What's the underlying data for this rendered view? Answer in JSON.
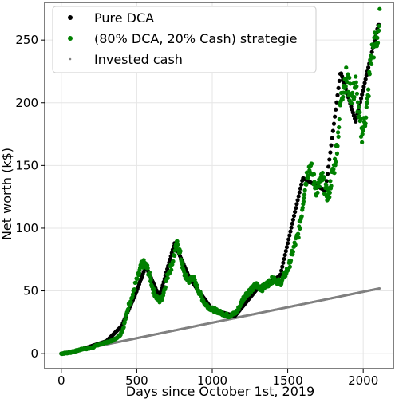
{
  "chart_data": {
    "type": "scatter",
    "title": "",
    "xlabel": "Days since October 1st, 2019",
    "ylabel": "Net worth (k$)",
    "xlim": [
      -110,
      2200
    ],
    "ylim": [
      -12,
      280
    ],
    "xticks": [
      0,
      500,
      1000,
      1500,
      2000
    ],
    "yticks": [
      0,
      50,
      100,
      150,
      200,
      250
    ],
    "grid": true,
    "legend": {
      "placement": "top-left",
      "entries": [
        "Pure DCA",
        "(80% DCA, 20% Cash) strategie",
        "Invested cash"
      ]
    },
    "series": [
      {
        "name": "Pure DCA",
        "color": "#000000",
        "x": [
          0,
          100,
          200,
          300,
          400,
          500,
          560,
          650,
          750,
          850,
          1000,
          1150,
          1300,
          1450,
          1600,
          1750,
          1850,
          1950,
          2100
        ],
        "y": [
          0,
          2,
          6,
          10,
          22,
          50,
          70,
          45,
          88,
          60,
          35,
          30,
          52,
          62,
          140,
          130,
          225,
          185,
          262
        ]
      },
      {
        "name": "(80% DCA, 20% Cash) strategie",
        "color": "#008000",
        "x": [
          0,
          30,
          60,
          90,
          120,
          150,
          180,
          210,
          240,
          270,
          300,
          330,
          360,
          390,
          410,
          430,
          450,
          470,
          490,
          510,
          530,
          550,
          570,
          590,
          610,
          630,
          650,
          670,
          690,
          710,
          730,
          750,
          770,
          790,
          810,
          830,
          850,
          870,
          890,
          910,
          930,
          950,
          970,
          990,
          1010,
          1030,
          1050,
          1070,
          1090,
          1110,
          1130,
          1150,
          1170,
          1190,
          1210,
          1230,
          1250,
          1270,
          1290,
          1310,
          1330,
          1350,
          1370,
          1390,
          1410,
          1430,
          1450,
          1470,
          1490,
          1510,
          1530,
          1550,
          1570,
          1590,
          1610,
          1630,
          1650,
          1670,
          1690,
          1710,
          1730,
          1750,
          1770,
          1790,
          1810,
          1830,
          1850,
          1870,
          1890,
          1910,
          1930,
          1950,
          1970,
          1990,
          2010,
          2030,
          2050,
          2070,
          2090,
          2110
        ],
        "y": [
          0,
          0.5,
          1,
          2,
          3,
          4,
          4,
          5,
          7,
          8,
          9,
          10,
          12,
          15,
          20,
          30,
          40,
          45,
          55,
          62,
          70,
          72,
          68,
          60,
          50,
          45,
          42,
          45,
          55,
          65,
          70,
          80,
          88,
          78,
          65,
          60,
          58,
          62,
          55,
          50,
          45,
          40,
          38,
          36,
          35,
          34,
          33,
          32,
          31,
          30,
          31,
          32,
          35,
          40,
          45,
          48,
          50,
          52,
          55,
          53,
          52,
          54,
          56,
          58,
          60,
          58,
          56,
          60,
          65,
          70,
          80,
          88,
          95,
          110,
          130,
          145,
          150,
          140,
          130,
          135,
          140,
          130,
          125,
          140,
          150,
          170,
          200,
          215,
          220,
          210,
          205,
          215,
          190,
          175,
          185,
          200,
          235,
          245,
          250,
          265
        ]
      },
      {
        "name": "Invested cash",
        "color": "#808080",
        "x": [
          0,
          2110
        ],
        "y": [
          0,
          52
        ]
      }
    ]
  }
}
